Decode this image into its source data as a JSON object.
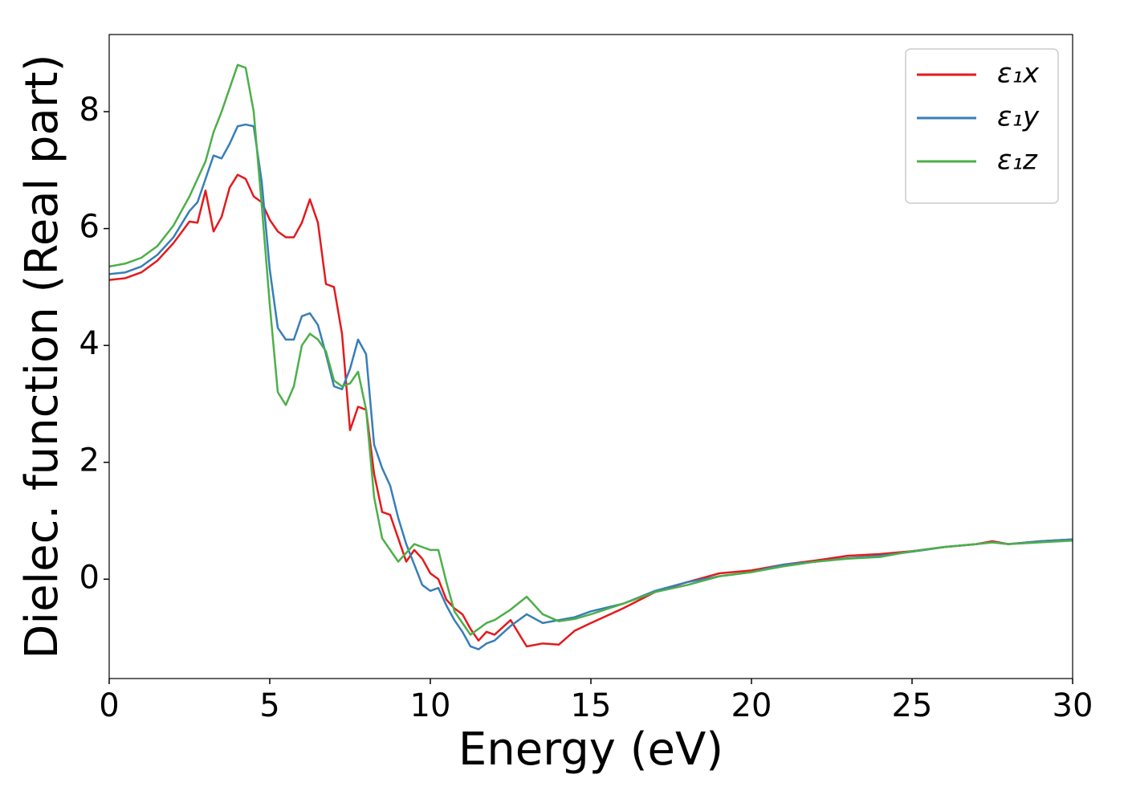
{
  "chart_data": {
    "type": "line",
    "xlabel": "Energy (eV)",
    "ylabel": "Dielec. function (Real part)",
    "x": [
      0,
      0.5,
      1,
      1.5,
      2,
      2.5,
      2.75,
      3,
      3.25,
      3.5,
      3.75,
      4,
      4.25,
      4.5,
      4.75,
      5,
      5.25,
      5.5,
      5.75,
      6,
      6.25,
      6.5,
      6.75,
      7,
      7.25,
      7.5,
      7.75,
      8,
      8.25,
      8.5,
      8.75,
      9,
      9.25,
      9.5,
      9.75,
      10,
      10.25,
      10.5,
      10.75,
      11,
      11.25,
      11.5,
      11.75,
      12,
      12.5,
      13,
      13.5,
      14,
      14.5,
      15,
      16,
      17,
      18,
      19,
      20,
      21,
      22,
      23,
      24,
      25,
      26,
      27,
      27.5,
      28,
      29,
      30
    ],
    "series": [
      {
        "name": "ε₁x",
        "color": "#e41a1c",
        "values": [
          5.12,
          5.15,
          5.25,
          5.45,
          5.75,
          6.12,
          6.1,
          6.65,
          5.95,
          6.2,
          6.7,
          6.92,
          6.85,
          6.55,
          6.45,
          6.15,
          5.95,
          5.85,
          5.85,
          6.1,
          6.5,
          6.1,
          5.05,
          5.0,
          4.2,
          2.55,
          2.95,
          2.9,
          1.8,
          1.15,
          1.1,
          0.7,
          0.3,
          0.5,
          0.35,
          0.1,
          0.0,
          -0.35,
          -0.5,
          -0.6,
          -0.85,
          -1.05,
          -0.9,
          -0.95,
          -0.7,
          -1.15,
          -1.1,
          -1.12,
          -0.88,
          -0.75,
          -0.5,
          -0.22,
          -0.05,
          0.1,
          0.15,
          0.25,
          0.32,
          0.4,
          0.43,
          0.48,
          0.55,
          0.6,
          0.65,
          0.6,
          0.65,
          0.68
        ]
      },
      {
        "name": "ε₁y",
        "color": "#377eb8",
        "values": [
          5.22,
          5.25,
          5.35,
          5.55,
          5.85,
          6.3,
          6.45,
          6.85,
          7.25,
          7.2,
          7.45,
          7.75,
          7.78,
          7.75,
          6.8,
          5.3,
          4.3,
          4.1,
          4.1,
          4.5,
          4.55,
          4.35,
          3.85,
          3.3,
          3.25,
          3.6,
          4.1,
          3.85,
          2.3,
          1.9,
          1.6,
          1.05,
          0.6,
          0.25,
          -0.1,
          -0.2,
          -0.15,
          -0.45,
          -0.7,
          -0.9,
          -1.15,
          -1.2,
          -1.1,
          -1.05,
          -0.8,
          -0.6,
          -0.75,
          -0.7,
          -0.65,
          -0.55,
          -0.42,
          -0.2,
          -0.05,
          0.05,
          0.12,
          0.25,
          0.3,
          0.36,
          0.4,
          0.47,
          0.55,
          0.6,
          0.63,
          0.6,
          0.65,
          0.68
        ]
      },
      {
        "name": "ε₁z",
        "color": "#4daf4a",
        "values": [
          5.35,
          5.4,
          5.5,
          5.7,
          6.05,
          6.55,
          6.85,
          7.15,
          7.65,
          8.0,
          8.4,
          8.8,
          8.75,
          8.0,
          6.4,
          4.7,
          3.2,
          2.98,
          3.3,
          4.0,
          4.2,
          4.1,
          3.9,
          3.4,
          3.3,
          3.35,
          3.55,
          2.9,
          1.4,
          0.7,
          0.5,
          0.3,
          0.45,
          0.6,
          0.55,
          0.5,
          0.5,
          -0.05,
          -0.55,
          -0.75,
          -0.95,
          -0.85,
          -0.75,
          -0.7,
          -0.52,
          -0.3,
          -0.6,
          -0.72,
          -0.68,
          -0.6,
          -0.42,
          -0.22,
          -0.1,
          0.05,
          0.12,
          0.22,
          0.3,
          0.35,
          0.38,
          0.48,
          0.55,
          0.6,
          0.63,
          0.6,
          0.63,
          0.66
        ]
      }
    ],
    "xlim": [
      0,
      30
    ],
    "ylim": [
      -1.7,
      9.32
    ],
    "xticks": [
      0,
      5,
      10,
      15,
      20,
      25,
      30
    ],
    "yticks": [
      0,
      2,
      4,
      6,
      8
    ],
    "legend": "upper right"
  }
}
